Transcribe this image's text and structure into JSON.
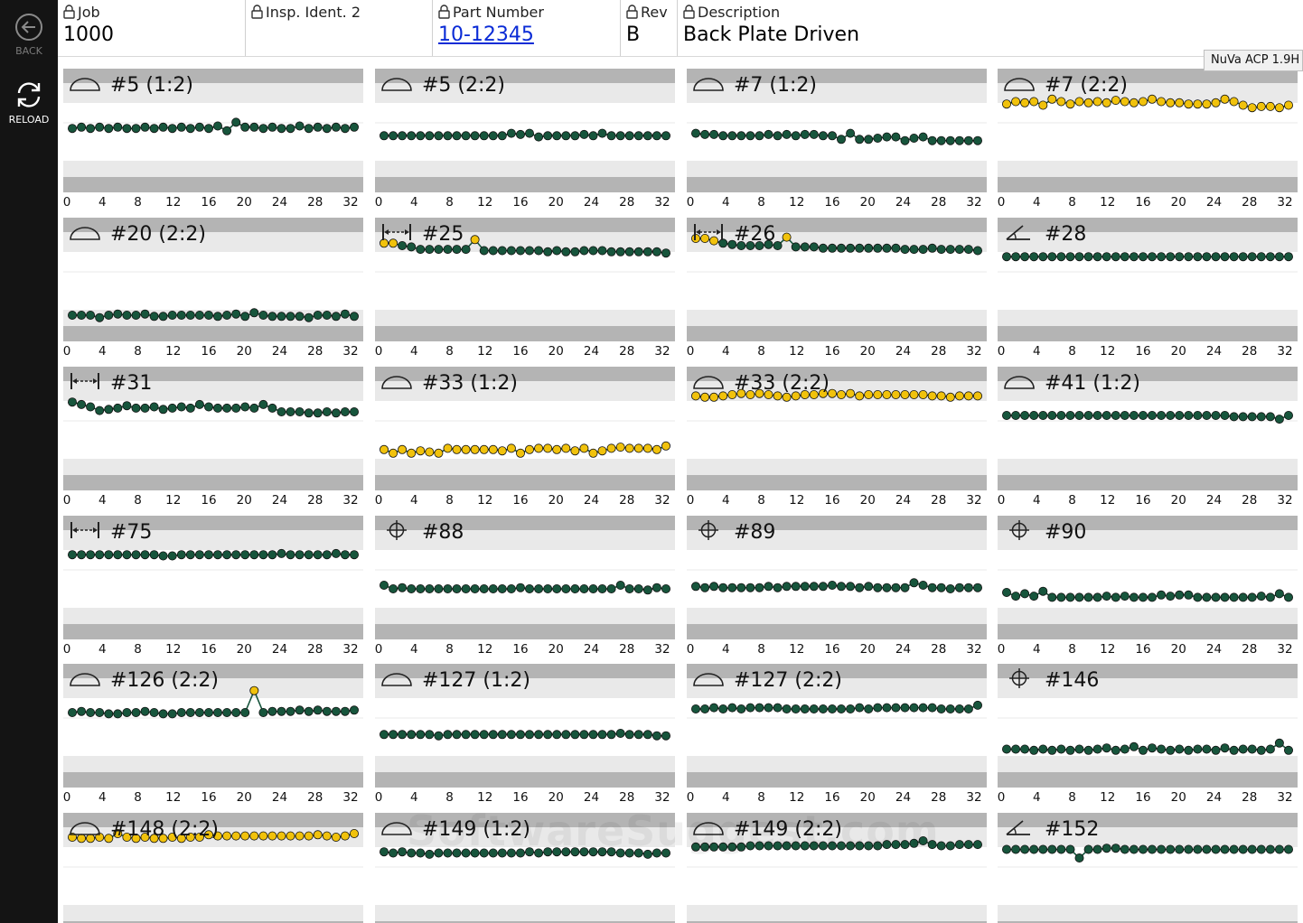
{
  "sidebar": {
    "back_label": "BACK",
    "reload_label": "RELOAD"
  },
  "header": {
    "job": {
      "label": "Job",
      "value": "1000"
    },
    "insp_ident": {
      "label": "Insp. Ident. 2",
      "value": ""
    },
    "part_number": {
      "label": "Part Number",
      "value": "10-12345"
    },
    "rev": {
      "label": "Rev",
      "value": "B"
    },
    "description": {
      "label": "Description",
      "value": "Back Plate Driven"
    }
  },
  "tooltip": "NuVa ACP 1.9H",
  "watermark": "SoftwareSuggest.com",
  "colors": {
    "in_spec": "#17553c",
    "out_spec": "#f1c20c",
    "band_dark": "#b4b4b4",
    "band_light": "#e9e9e9",
    "sidebar_bg": "#141414"
  },
  "chart_data": [
    {
      "type": "scatter",
      "title": "#5 (1:2)",
      "icon": "profile-icon",
      "x_ticks": [
        0,
        4,
        8,
        12,
        16,
        20,
        24,
        28,
        32
      ],
      "y_levels": [
        0.51,
        0.52,
        0.51,
        0.52,
        0.51,
        0.52,
        0.51,
        0.51,
        0.52,
        0.51,
        0.52,
        0.51,
        0.52,
        0.51,
        0.52,
        0.51,
        0.53,
        0.49,
        0.56,
        0.52,
        0.52,
        0.51,
        0.52,
        0.51,
        0.51,
        0.53,
        0.51,
        0.52,
        0.51,
        0.52,
        0.51,
        0.52
      ]
    },
    {
      "type": "scatter",
      "title": "#5 (2:2)",
      "icon": "profile-icon",
      "x_ticks": [
        0,
        4,
        8,
        12,
        16,
        20,
        24,
        28,
        32
      ],
      "y_levels": [
        0.45,
        0.45,
        0.45,
        0.45,
        0.45,
        0.45,
        0.45,
        0.45,
        0.45,
        0.45,
        0.45,
        0.45,
        0.45,
        0.45,
        0.47,
        0.46,
        0.47,
        0.44,
        0.45,
        0.45,
        0.45,
        0.45,
        0.46,
        0.45,
        0.47,
        0.45,
        0.45,
        0.45,
        0.45,
        0.45,
        0.45,
        0.45
      ]
    },
    {
      "type": "scatter",
      "title": "#7 (1:2)",
      "icon": "profile-icon",
      "x_ticks": [
        0,
        4,
        8,
        12,
        16,
        20,
        24,
        28,
        32
      ],
      "y_levels": [
        0.47,
        0.46,
        0.46,
        0.45,
        0.45,
        0.45,
        0.45,
        0.45,
        0.46,
        0.45,
        0.46,
        0.45,
        0.46,
        0.46,
        0.45,
        0.45,
        0.42,
        0.47,
        0.42,
        0.42,
        0.43,
        0.44,
        0.44,
        0.41,
        0.43,
        0.44,
        0.41,
        0.41,
        0.41,
        0.41,
        0.41,
        0.41
      ]
    },
    {
      "type": "scatter",
      "title": "#7 (2:2)",
      "icon": "profile-icon",
      "x_ticks": [
        0,
        4,
        8,
        12,
        16,
        20,
        24,
        28,
        32
      ],
      "y_levels": [
        0.71,
        0.73,
        0.72,
        0.73,
        0.7,
        0.75,
        0.73,
        0.71,
        0.73,
        0.72,
        0.73,
        0.72,
        0.74,
        0.73,
        0.72,
        0.73,
        0.75,
        0.73,
        0.72,
        0.72,
        0.71,
        0.71,
        0.71,
        0.72,
        0.75,
        0.73,
        0.7,
        0.68,
        0.69,
        0.69,
        0.68,
        0.7
      ]
    },
    {
      "type": "scatter",
      "title": "#20 (2:2)",
      "icon": "profile-icon",
      "x_ticks": [
        0,
        4,
        8,
        12,
        16,
        20,
        24,
        28,
        32
      ],
      "y_levels": [
        0.2,
        0.2,
        0.2,
        0.18,
        0.2,
        0.21,
        0.2,
        0.2,
        0.21,
        0.19,
        0.19,
        0.2,
        0.2,
        0.2,
        0.2,
        0.2,
        0.19,
        0.2,
        0.21,
        0.19,
        0.22,
        0.2,
        0.19,
        0.19,
        0.19,
        0.19,
        0.18,
        0.2,
        0.2,
        0.19,
        0.21,
        0.19
      ]
    },
    {
      "type": "scatter",
      "title": "#25",
      "icon": "width-icon",
      "x_ticks": [
        0,
        4,
        8,
        12,
        16,
        20,
        24,
        28,
        32
      ],
      "y_levels": [
        0.79,
        0.79,
        0.77,
        0.76,
        0.74,
        0.74,
        0.74,
        0.74,
        0.74,
        0.74,
        0.82,
        0.73,
        0.73,
        0.73,
        0.73,
        0.73,
        0.73,
        0.73,
        0.72,
        0.73,
        0.72,
        0.72,
        0.73,
        0.73,
        0.73,
        0.72,
        0.72,
        0.72,
        0.72,
        0.72,
        0.72,
        0.71
      ]
    },
    {
      "type": "scatter",
      "title": "#26",
      "icon": "width-icon",
      "x_ticks": [
        0,
        4,
        8,
        12,
        16,
        20,
        24,
        28,
        32
      ],
      "y_levels": [
        0.83,
        0.83,
        0.81,
        0.79,
        0.78,
        0.77,
        0.77,
        0.77,
        0.78,
        0.77,
        0.84,
        0.76,
        0.76,
        0.76,
        0.75,
        0.75,
        0.75,
        0.75,
        0.75,
        0.75,
        0.75,
        0.75,
        0.75,
        0.74,
        0.74,
        0.74,
        0.75,
        0.74,
        0.74,
        0.74,
        0.74,
        0.73
      ]
    },
    {
      "type": "scatter",
      "title": "#28",
      "icon": "angle-icon",
      "x_ticks": [
        0,
        4,
        8,
        12,
        16,
        20,
        24,
        28,
        32
      ],
      "y_levels": [
        0.68,
        0.68,
        0.68,
        0.68,
        0.68,
        0.68,
        0.68,
        0.68,
        0.68,
        0.68,
        0.68,
        0.68,
        0.68,
        0.68,
        0.68,
        0.68,
        0.68,
        0.68,
        0.68,
        0.68,
        0.68,
        0.68,
        0.68,
        0.68,
        0.68,
        0.68,
        0.68,
        0.68,
        0.68,
        0.68,
        0.68,
        0.68
      ]
    },
    {
      "type": "scatter",
      "title": "#31",
      "icon": "width-icon",
      "x_ticks": [
        0,
        4,
        8,
        12,
        16,
        20,
        24,
        28,
        32
      ],
      "y_levels": [
        0.71,
        0.69,
        0.67,
        0.64,
        0.65,
        0.66,
        0.68,
        0.66,
        0.66,
        0.67,
        0.65,
        0.66,
        0.67,
        0.66,
        0.69,
        0.67,
        0.66,
        0.66,
        0.66,
        0.67,
        0.66,
        0.69,
        0.66,
        0.63,
        0.63,
        0.63,
        0.62,
        0.62,
        0.63,
        0.62,
        0.63,
        0.63
      ]
    },
    {
      "type": "scatter",
      "title": "#33 (1:2)",
      "icon": "profile-icon",
      "x_ticks": [
        0,
        4,
        8,
        12,
        16,
        20,
        24,
        28,
        32
      ],
      "y_levels": [
        0.32,
        0.29,
        0.32,
        0.29,
        0.31,
        0.3,
        0.29,
        0.33,
        0.32,
        0.32,
        0.32,
        0.32,
        0.32,
        0.31,
        0.33,
        0.29,
        0.32,
        0.33,
        0.33,
        0.32,
        0.33,
        0.31,
        0.33,
        0.29,
        0.31,
        0.33,
        0.34,
        0.33,
        0.33,
        0.33,
        0.32,
        0.35
      ]
    },
    {
      "type": "scatter",
      "title": "#33 (2:2)",
      "icon": "profile-icon",
      "x_ticks": [
        0,
        4,
        8,
        12,
        16,
        20,
        24,
        28,
        32
      ],
      "y_levels": [
        0.76,
        0.75,
        0.75,
        0.76,
        0.77,
        0.78,
        0.77,
        0.78,
        0.77,
        0.76,
        0.75,
        0.76,
        0.77,
        0.77,
        0.78,
        0.78,
        0.77,
        0.78,
        0.76,
        0.77,
        0.77,
        0.77,
        0.77,
        0.77,
        0.77,
        0.77,
        0.76,
        0.76,
        0.75,
        0.76,
        0.76,
        0.76
      ]
    },
    {
      "type": "scatter",
      "title": "#41 (1:2)",
      "icon": "profile-icon",
      "x_ticks": [
        0,
        4,
        8,
        12,
        16,
        20,
        24,
        28,
        32
      ],
      "y_levels": [
        0.6,
        0.6,
        0.6,
        0.6,
        0.6,
        0.6,
        0.6,
        0.6,
        0.6,
        0.6,
        0.6,
        0.6,
        0.6,
        0.6,
        0.6,
        0.6,
        0.6,
        0.6,
        0.6,
        0.6,
        0.6,
        0.6,
        0.6,
        0.6,
        0.6,
        0.59,
        0.59,
        0.59,
        0.59,
        0.59,
        0.57,
        0.6
      ]
    },
    {
      "type": "scatter",
      "title": "#75",
      "icon": "width-icon",
      "x_ticks": [
        0,
        4,
        8,
        12,
        16,
        20,
        24,
        28,
        32
      ],
      "y_levels": [
        0.68,
        0.68,
        0.68,
        0.68,
        0.68,
        0.68,
        0.68,
        0.68,
        0.68,
        0.68,
        0.67,
        0.67,
        0.68,
        0.68,
        0.68,
        0.68,
        0.68,
        0.68,
        0.68,
        0.68,
        0.68,
        0.68,
        0.68,
        0.69,
        0.68,
        0.68,
        0.68,
        0.68,
        0.68,
        0.69,
        0.68,
        0.68
      ]
    },
    {
      "type": "scatter",
      "title": "#88",
      "icon": "position-icon",
      "x_ticks": [
        0,
        4,
        8,
        12,
        16,
        20,
        24,
        28,
        32
      ],
      "y_levels": [
        0.43,
        0.4,
        0.41,
        0.4,
        0.4,
        0.4,
        0.4,
        0.4,
        0.4,
        0.4,
        0.4,
        0.4,
        0.4,
        0.4,
        0.4,
        0.41,
        0.4,
        0.4,
        0.4,
        0.4,
        0.4,
        0.4,
        0.4,
        0.4,
        0.4,
        0.4,
        0.43,
        0.4,
        0.4,
        0.39,
        0.41,
        0.4
      ]
    },
    {
      "type": "scatter",
      "title": "#89",
      "icon": "position-icon",
      "x_ticks": [
        0,
        4,
        8,
        12,
        16,
        20,
        24,
        28,
        32
      ],
      "y_levels": [
        0.42,
        0.41,
        0.42,
        0.41,
        0.41,
        0.41,
        0.41,
        0.41,
        0.42,
        0.41,
        0.42,
        0.42,
        0.42,
        0.42,
        0.42,
        0.43,
        0.42,
        0.42,
        0.41,
        0.42,
        0.41,
        0.41,
        0.41,
        0.41,
        0.45,
        0.43,
        0.41,
        0.41,
        0.4,
        0.41,
        0.41,
        0.41
      ]
    },
    {
      "type": "scatter",
      "title": "#90",
      "icon": "position-icon",
      "x_ticks": [
        0,
        4,
        8,
        12,
        16,
        20,
        24,
        28,
        32
      ],
      "y_levels": [
        0.37,
        0.34,
        0.36,
        0.34,
        0.38,
        0.33,
        0.33,
        0.33,
        0.33,
        0.33,
        0.33,
        0.34,
        0.33,
        0.34,
        0.33,
        0.33,
        0.33,
        0.35,
        0.34,
        0.35,
        0.35,
        0.33,
        0.33,
        0.33,
        0.33,
        0.33,
        0.33,
        0.33,
        0.34,
        0.33,
        0.36,
        0.33
      ]
    },
    {
      "type": "scatter",
      "title": "#126 (2:2)",
      "icon": "profile-icon",
      "x_ticks": [
        0,
        4,
        8,
        12,
        16,
        20,
        24,
        28,
        32
      ],
      "y_levels": [
        0.6,
        0.61,
        0.6,
        0.6,
        0.59,
        0.59,
        0.6,
        0.6,
        0.61,
        0.6,
        0.59,
        0.59,
        0.6,
        0.6,
        0.6,
        0.6,
        0.6,
        0.6,
        0.6,
        0.6,
        0.78,
        0.6,
        0.61,
        0.61,
        0.61,
        0.62,
        0.61,
        0.62,
        0.61,
        0.61,
        0.61,
        0.62
      ]
    },
    {
      "type": "scatter",
      "title": "#127 (1:2)",
      "icon": "profile-icon",
      "x_ticks": [
        0,
        4,
        8,
        12,
        16,
        20,
        24,
        28,
        32
      ],
      "y_levels": [
        0.42,
        0.42,
        0.42,
        0.42,
        0.42,
        0.42,
        0.41,
        0.42,
        0.42,
        0.42,
        0.42,
        0.42,
        0.42,
        0.42,
        0.42,
        0.42,
        0.42,
        0.42,
        0.42,
        0.42,
        0.42,
        0.42,
        0.42,
        0.42,
        0.42,
        0.42,
        0.43,
        0.42,
        0.42,
        0.42,
        0.41,
        0.41
      ]
    },
    {
      "type": "scatter",
      "title": "#127 (2:2)",
      "icon": "profile-icon",
      "x_ticks": [
        0,
        4,
        8,
        12,
        16,
        20,
        24,
        28,
        32
      ],
      "y_levels": [
        0.63,
        0.63,
        0.64,
        0.63,
        0.64,
        0.63,
        0.64,
        0.64,
        0.64,
        0.64,
        0.63,
        0.63,
        0.63,
        0.63,
        0.63,
        0.63,
        0.63,
        0.63,
        0.64,
        0.63,
        0.64,
        0.64,
        0.64,
        0.64,
        0.64,
        0.64,
        0.64,
        0.63,
        0.63,
        0.63,
        0.63,
        0.66
      ]
    },
    {
      "type": "scatter",
      "title": "#146",
      "icon": "position-icon",
      "x_ticks": [
        0,
        4,
        8,
        12,
        16,
        20,
        24,
        28,
        32
      ],
      "y_levels": [
        0.3,
        0.3,
        0.3,
        0.29,
        0.3,
        0.29,
        0.3,
        0.29,
        0.3,
        0.29,
        0.3,
        0.31,
        0.29,
        0.3,
        0.32,
        0.29,
        0.31,
        0.3,
        0.29,
        0.3,
        0.29,
        0.3,
        0.3,
        0.29,
        0.31,
        0.29,
        0.3,
        0.3,
        0.29,
        0.3,
        0.35,
        0.29
      ]
    },
    {
      "type": "scatter",
      "title": "#148 (2:2)",
      "icon": "profile-icon",
      "x_ticks": [
        0,
        4,
        8,
        12,
        16,
        20,
        24,
        28,
        32
      ],
      "y_levels": [
        0.8,
        0.79,
        0.79,
        0.8,
        0.79,
        0.83,
        0.8,
        0.79,
        0.8,
        0.79,
        0.79,
        0.8,
        0.79,
        0.8,
        0.8,
        0.82,
        0.81,
        0.81,
        0.81,
        0.81,
        0.81,
        0.81,
        0.81,
        0.81,
        0.81,
        0.81,
        0.81,
        0.82,
        0.81,
        0.8,
        0.81,
        0.83
      ]
    },
    {
      "type": "scatter",
      "title": "#149 (1:2)",
      "icon": "profile-icon",
      "x_ticks": [
        0,
        4,
        8,
        12,
        16,
        20,
        24,
        28,
        32
      ],
      "y_levels": [
        0.68,
        0.67,
        0.68,
        0.67,
        0.67,
        0.66,
        0.67,
        0.67,
        0.67,
        0.67,
        0.67,
        0.67,
        0.67,
        0.67,
        0.67,
        0.67,
        0.68,
        0.67,
        0.68,
        0.68,
        0.68,
        0.68,
        0.68,
        0.68,
        0.68,
        0.68,
        0.67,
        0.67,
        0.67,
        0.66,
        0.67,
        0.67
      ]
    },
    {
      "type": "scatter",
      "title": "#149 (2:2)",
      "icon": "profile-icon",
      "x_ticks": [
        0,
        4,
        8,
        12,
        16,
        20,
        24,
        28,
        32
      ],
      "y_levels": [
        0.72,
        0.72,
        0.72,
        0.72,
        0.72,
        0.72,
        0.73,
        0.73,
        0.73,
        0.73,
        0.73,
        0.73,
        0.73,
        0.73,
        0.73,
        0.73,
        0.73,
        0.73,
        0.73,
        0.73,
        0.73,
        0.74,
        0.74,
        0.74,
        0.75,
        0.77,
        0.74,
        0.73,
        0.73,
        0.74,
        0.74,
        0.74
      ]
    },
    {
      "type": "scatter",
      "title": "#152",
      "icon": "angle-icon",
      "x_ticks": [
        0,
        4,
        8,
        12,
        16,
        20,
        24,
        28,
        32
      ],
      "y_levels": [
        0.7,
        0.7,
        0.7,
        0.7,
        0.7,
        0.7,
        0.7,
        0.7,
        0.63,
        0.7,
        0.7,
        0.71,
        0.71,
        0.7,
        0.7,
        0.7,
        0.7,
        0.7,
        0.7,
        0.7,
        0.7,
        0.7,
        0.7,
        0.7,
        0.7,
        0.7,
        0.7,
        0.7,
        0.7,
        0.7,
        0.7,
        0.7
      ]
    }
  ]
}
